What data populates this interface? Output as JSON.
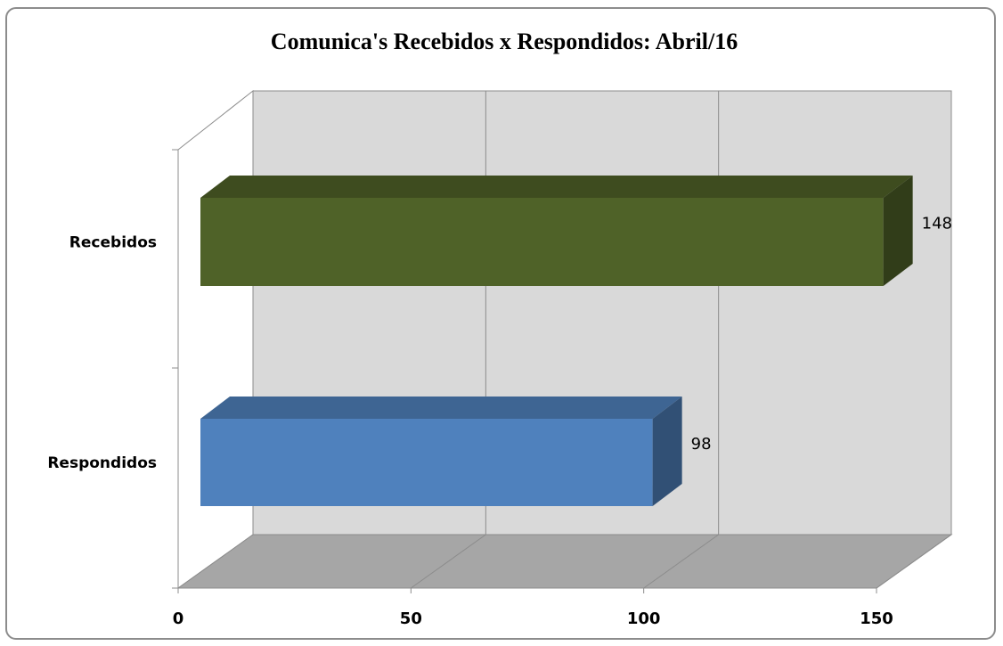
{
  "chart_data": {
    "type": "bar",
    "orientation": "horizontal",
    "title": "Comunica's Recebidos x Respondidos:  Abril/16",
    "categories": [
      "Recebidos",
      "Respondidos"
    ],
    "values": [
      148,
      98
    ],
    "data_labels": [
      "148",
      "98"
    ],
    "xlim": [
      0,
      150
    ],
    "x_ticks": [
      "0",
      "50",
      "100",
      "150"
    ],
    "grid": true,
    "three_d": true,
    "legend": "none",
    "colors": {
      "Recebidos": "#4f6228",
      "Respondidos": "#4f81bd",
      "back_wall": "#d9d9d9",
      "floor": "#a6a6a6"
    }
  }
}
